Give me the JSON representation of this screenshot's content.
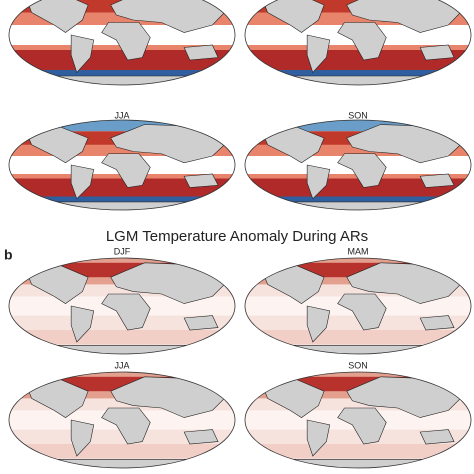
{
  "panel_a": {
    "maps": [
      {
        "label": "JJA"
      },
      {
        "label": "SON"
      }
    ]
  },
  "panel_b": {
    "panel_label": "b",
    "title": "LGM Temperature Anomaly During ARs",
    "maps": [
      {
        "label": "DJF"
      },
      {
        "label": "MAM"
      },
      {
        "label": "JJA"
      },
      {
        "label": "SON"
      }
    ]
  }
}
